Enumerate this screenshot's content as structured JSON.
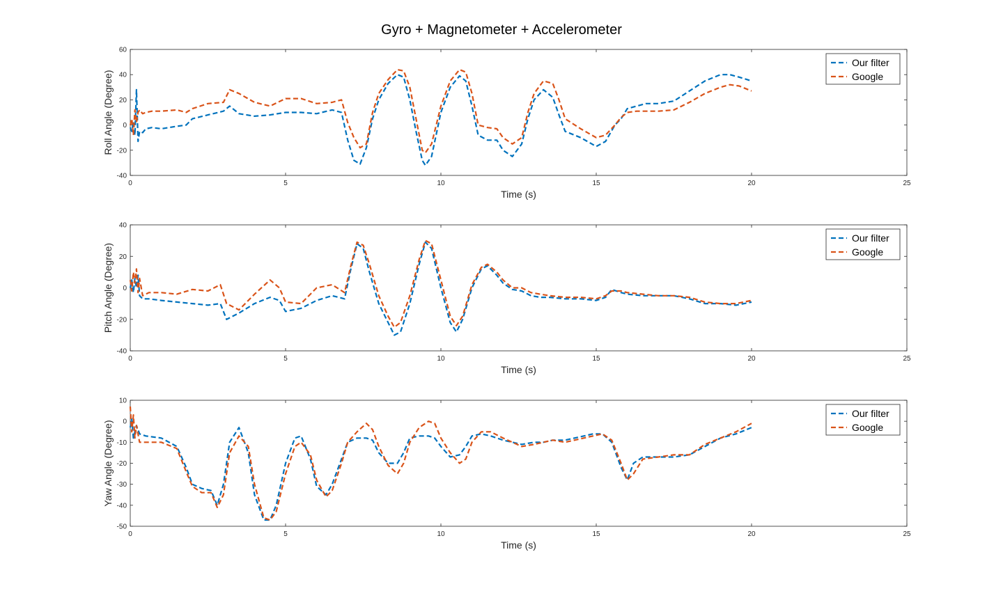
{
  "figure_title": "Gyro + Magnetometer + Accelerometer",
  "chart_data": [
    {
      "type": "line",
      "title": "",
      "xlabel": "Time (s)",
      "ylabel": "Roll Angle (Degree)",
      "xlim": [
        0,
        25
      ],
      "ylim": [
        -40,
        60
      ],
      "xticks": [
        0,
        5,
        10,
        15,
        20,
        25
      ],
      "yticks": [
        -40,
        -20,
        0,
        20,
        40,
        60
      ],
      "grid": false,
      "legend_position": "top-right",
      "series": [
        {
          "name": "Our filter",
          "color": "#0072BD",
          "x": [
            0,
            0.05,
            0.1,
            0.15,
            0.2,
            0.25,
            0.3,
            0.4,
            0.5,
            0.7,
            1.0,
            1.5,
            1.8,
            2.0,
            2.5,
            3.0,
            3.2,
            3.5,
            4.0,
            4.5,
            5.0,
            5.5,
            6.0,
            6.5,
            6.8,
            7.0,
            7.2,
            7.4,
            7.6,
            7.8,
            8.0,
            8.3,
            8.6,
            8.8,
            9.0,
            9.2,
            9.4,
            9.5,
            9.7,
            10.0,
            10.3,
            10.6,
            10.8,
            11.0,
            11.2,
            11.5,
            11.8,
            12.0,
            12.3,
            12.6,
            12.8,
            13.0,
            13.3,
            13.6,
            13.8,
            14.0,
            14.5,
            15.0,
            15.3,
            15.6,
            15.8,
            16.0,
            16.3,
            16.6,
            17.0,
            17.5,
            18.0,
            18.5,
            19.0,
            19.3,
            19.6,
            20.0
          ],
          "y": [
            -2,
            -5,
            3,
            -8,
            28,
            -13,
            -5,
            -6,
            -3,
            -2,
            -3,
            -1,
            0,
            5,
            8,
            11,
            15,
            9,
            7,
            8,
            10,
            10,
            9,
            12,
            10,
            -12,
            -28,
            -31,
            -18,
            5,
            20,
            33,
            40,
            38,
            20,
            -5,
            -28,
            -32,
            -25,
            10,
            30,
            39,
            35,
            15,
            -8,
            -12,
            -12,
            -20,
            -25,
            -15,
            5,
            20,
            28,
            22,
            8,
            -5,
            -10,
            -17,
            -13,
            0,
            5,
            13,
            15,
            17,
            17,
            19,
            27,
            35,
            40,
            40,
            38,
            35
          ]
        },
        {
          "name": "Google",
          "color": "#D95319",
          "x": [
            0,
            0.05,
            0.1,
            0.15,
            0.2,
            0.25,
            0.3,
            0.4,
            0.5,
            0.7,
            1.0,
            1.5,
            1.8,
            2.0,
            2.5,
            3.0,
            3.2,
            3.5,
            4.0,
            4.5,
            5.0,
            5.5,
            6.0,
            6.5,
            6.8,
            7.0,
            7.2,
            7.4,
            7.6,
            7.8,
            8.0,
            8.3,
            8.6,
            8.8,
            9.0,
            9.2,
            9.4,
            9.5,
            9.7,
            10.0,
            10.3,
            10.6,
            10.8,
            11.0,
            11.2,
            11.5,
            11.8,
            12.0,
            12.3,
            12.6,
            12.8,
            13.0,
            13.3,
            13.6,
            13.8,
            14.0,
            14.5,
            15.0,
            15.3,
            15.6,
            15.8,
            16.0,
            16.3,
            16.6,
            17.0,
            17.5,
            18.0,
            18.5,
            19.0,
            19.3,
            19.6,
            20.0
          ],
          "y": [
            0,
            5,
            -8,
            12,
            2,
            10,
            12,
            9,
            10,
            11,
            11,
            12,
            10,
            13,
            17,
            18,
            28,
            25,
            18,
            15,
            21,
            21,
            17,
            18,
            20,
            2,
            -10,
            -18,
            -15,
            10,
            25,
            36,
            44,
            43,
            30,
            5,
            -20,
            -22,
            -15,
            15,
            35,
            44,
            42,
            25,
            0,
            -2,
            -3,
            -10,
            -15,
            -10,
            10,
            25,
            35,
            33,
            20,
            5,
            -3,
            -10,
            -8,
            0,
            6,
            10,
            11,
            11,
            11,
            12,
            18,
            25,
            30,
            32,
            31,
            27
          ]
        }
      ]
    },
    {
      "type": "line",
      "title": "",
      "xlabel": "Time (s)",
      "ylabel": "Pitch Angle (Degree)",
      "xlim": [
        0,
        25
      ],
      "ylim": [
        -40,
        40
      ],
      "xticks": [
        0,
        5,
        10,
        15,
        20,
        25
      ],
      "yticks": [
        -40,
        -20,
        0,
        20,
        40
      ],
      "grid": false,
      "legend_position": "top-right",
      "series": [
        {
          "name": "Our filter",
          "color": "#0072BD",
          "x": [
            0,
            0.05,
            0.1,
            0.15,
            0.2,
            0.25,
            0.3,
            0.4,
            0.6,
            1.0,
            1.5,
            2.0,
            2.5,
            2.9,
            3.1,
            3.5,
            4.0,
            4.5,
            4.8,
            5.0,
            5.5,
            6.0,
            6.5,
            6.9,
            7.1,
            7.3,
            7.5,
            7.7,
            8.0,
            8.3,
            8.5,
            8.7,
            9.0,
            9.3,
            9.5,
            9.7,
            10.0,
            10.3,
            10.5,
            10.7,
            11.0,
            11.3,
            11.5,
            11.8,
            12.0,
            12.3,
            12.6,
            12.9,
            13.2,
            13.5,
            14.0,
            14.5,
            15.0,
            15.3,
            15.5,
            15.8,
            16.0,
            16.5,
            17.0,
            17.5,
            18.0,
            18.5,
            19.0,
            19.5,
            20.0
          ],
          "y": [
            0,
            5,
            -3,
            6,
            0,
            8,
            -5,
            -7,
            -7,
            -8,
            -9,
            -10,
            -11,
            -10,
            -20,
            -16,
            -10,
            -6,
            -8,
            -15,
            -13,
            -8,
            -5,
            -7,
            12,
            28,
            25,
            10,
            -10,
            -22,
            -30,
            -28,
            -10,
            15,
            29,
            25,
            0,
            -22,
            -28,
            -20,
            0,
            12,
            14,
            8,
            3,
            -1,
            -2,
            -5,
            -6,
            -6,
            -7,
            -7,
            -8,
            -6,
            -1,
            -3,
            -4,
            -5,
            -5,
            -5,
            -7,
            -10,
            -10,
            -11,
            -9
          ]
        },
        {
          "name": "Google",
          "color": "#D95319",
          "x": [
            0,
            0.05,
            0.1,
            0.15,
            0.2,
            0.25,
            0.3,
            0.4,
            0.6,
            1.0,
            1.5,
            2.0,
            2.5,
            2.9,
            3.1,
            3.5,
            4.0,
            4.5,
            4.8,
            5.0,
            5.5,
            6.0,
            6.5,
            6.9,
            7.1,
            7.3,
            7.5,
            7.7,
            8.0,
            8.3,
            8.5,
            8.7,
            9.0,
            9.3,
            9.5,
            9.7,
            10.0,
            10.3,
            10.5,
            10.7,
            11.0,
            11.3,
            11.5,
            11.8,
            12.0,
            12.3,
            12.6,
            12.9,
            13.2,
            13.5,
            14.0,
            14.5,
            15.0,
            15.3,
            15.5,
            15.8,
            16.0,
            16.5,
            17.0,
            17.5,
            18.0,
            18.5,
            19.0,
            19.5,
            20.0
          ],
          "y": [
            5,
            -2,
            10,
            3,
            12,
            -3,
            6,
            -5,
            -3,
            -3,
            -4,
            -1,
            -2,
            2,
            -10,
            -14,
            -4,
            5,
            0,
            -9,
            -10,
            0,
            2,
            -3,
            14,
            29,
            27,
            15,
            -5,
            -18,
            -25,
            -22,
            -5,
            18,
            30,
            28,
            5,
            -18,
            -24,
            -18,
            2,
            13,
            15,
            10,
            5,
            0,
            0,
            -3,
            -4,
            -5,
            -6,
            -6,
            -7,
            -5,
            -2,
            -2,
            -3,
            -4,
            -5,
            -5,
            -6,
            -9,
            -10,
            -10,
            -8
          ]
        }
      ]
    },
    {
      "type": "line",
      "title": "",
      "xlabel": "Time (s)",
      "ylabel": "Yaw Angle (Degree)",
      "xlim": [
        0,
        25
      ],
      "ylim": [
        -50,
        10
      ],
      "xticks": [
        0,
        5,
        10,
        15,
        20,
        25
      ],
      "yticks": [
        -50,
        -40,
        -30,
        -20,
        -10,
        0,
        10
      ],
      "grid": false,
      "legend_position": "top-right",
      "series": [
        {
          "name": "Our filter",
          "color": "#0072BD",
          "x": [
            0,
            0.05,
            0.1,
            0.15,
            0.2,
            0.3,
            0.5,
            1.0,
            1.5,
            1.8,
            2.0,
            2.3,
            2.6,
            2.8,
            3.0,
            3.2,
            3.5,
            3.8,
            4.0,
            4.3,
            4.5,
            4.7,
            5.0,
            5.3,
            5.5,
            5.8,
            6.0,
            6.3,
            6.5,
            6.8,
            7.0,
            7.3,
            7.6,
            7.8,
            8.0,
            8.3,
            8.6,
            8.8,
            9.0,
            9.3,
            9.6,
            9.8,
            10.0,
            10.3,
            10.6,
            10.8,
            11.0,
            11.3,
            11.6,
            12.0,
            12.3,
            12.6,
            13.0,
            13.3,
            13.6,
            14.0,
            14.3,
            14.6,
            14.9,
            15.2,
            15.5,
            15.8,
            16.0,
            16.2,
            16.5,
            17.0,
            17.5,
            18.0,
            18.5,
            19.0,
            19.5,
            20.0
          ],
          "y": [
            -3,
            1,
            -8,
            -5,
            -2,
            -6,
            -7,
            -8,
            -12,
            -22,
            -30,
            -32,
            -33,
            -40,
            -30,
            -10,
            -3,
            -15,
            -35,
            -47,
            -47,
            -40,
            -20,
            -8,
            -7,
            -18,
            -31,
            -35,
            -30,
            -18,
            -10,
            -8,
            -8,
            -9,
            -15,
            -20,
            -20,
            -15,
            -8,
            -7,
            -7,
            -8,
            -12,
            -17,
            -16,
            -12,
            -7,
            -6,
            -7,
            -9,
            -10,
            -11,
            -10,
            -10,
            -9,
            -9,
            -8,
            -7,
            -6,
            -6,
            -10,
            -22,
            -28,
            -20,
            -17,
            -17,
            -17,
            -16,
            -12,
            -8,
            -6,
            -3
          ]
        },
        {
          "name": "Google",
          "color": "#D95319",
          "x": [
            0,
            0.05,
            0.1,
            0.15,
            0.2,
            0.3,
            0.5,
            1.0,
            1.5,
            1.8,
            2.0,
            2.3,
            2.6,
            2.8,
            3.0,
            3.2,
            3.5,
            3.8,
            4.0,
            4.3,
            4.5,
            4.7,
            5.0,
            5.3,
            5.5,
            5.8,
            6.0,
            6.3,
            6.5,
            6.8,
            7.0,
            7.3,
            7.6,
            7.8,
            8.0,
            8.3,
            8.6,
            8.8,
            9.0,
            9.3,
            9.6,
            9.8,
            10.0,
            10.3,
            10.6,
            10.8,
            11.0,
            11.3,
            11.6,
            12.0,
            12.3,
            12.6,
            13.0,
            13.3,
            13.6,
            14.0,
            14.3,
            14.6,
            14.9,
            15.2,
            15.5,
            15.8,
            16.0,
            16.2,
            16.5,
            17.0,
            17.5,
            18.0,
            18.5,
            19.0,
            19.5,
            20.0
          ],
          "y": [
            7,
            -5,
            3,
            -8,
            -2,
            -10,
            -10,
            -10,
            -13,
            -24,
            -31,
            -34,
            -34,
            -41,
            -35,
            -15,
            -7,
            -12,
            -30,
            -46,
            -47,
            -43,
            -25,
            -12,
            -10,
            -16,
            -28,
            -36,
            -33,
            -20,
            -10,
            -5,
            -1,
            -4,
            -12,
            -21,
            -25,
            -20,
            -10,
            -3,
            0,
            -1,
            -8,
            -15,
            -20,
            -18,
            -10,
            -5,
            -5,
            -8,
            -10,
            -12,
            -11,
            -10,
            -9,
            -10,
            -9,
            -8,
            -7,
            -6,
            -9,
            -20,
            -28,
            -25,
            -18,
            -17,
            -16,
            -16,
            -11,
            -8,
            -5,
            -1
          ]
        }
      ]
    }
  ]
}
